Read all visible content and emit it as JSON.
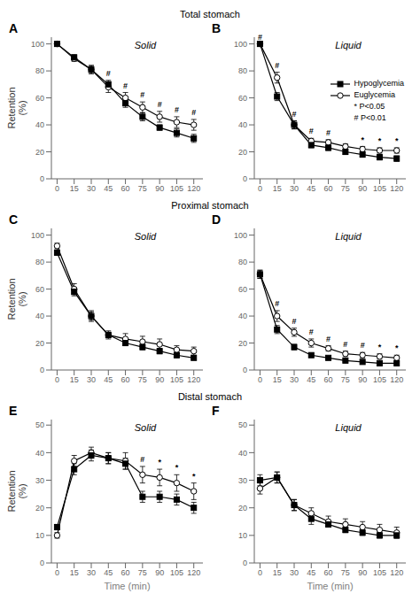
{
  "row_titles": [
    "Total stomach",
    "Proximal stomach",
    "Distal stomach"
  ],
  "chart_data": [
    {
      "type": "line",
      "title": "A",
      "subtitle": "Solid",
      "x": [
        0,
        15,
        30,
        45,
        60,
        75,
        90,
        105,
        120
      ],
      "xlim": [
        -5,
        128
      ],
      "xticks": [
        0,
        15,
        30,
        45,
        60,
        75,
        90,
        105,
        120
      ],
      "ylim": [
        0,
        105
      ],
      "yticks": [
        0,
        20,
        40,
        60,
        80,
        100
      ],
      "ylabel": "Retention\n(%)",
      "grid": false,
      "series": [
        {
          "name": "Hypoglycemia",
          "color": "#000000",
          "marker": "square",
          "values": [
            100,
            90,
            81,
            70,
            56,
            46,
            38,
            34,
            30
          ],
          "errors": [
            0,
            2,
            3,
            3,
            3,
            3,
            2,
            3,
            3
          ]
        },
        {
          "name": "Euglycemia",
          "color": "#000000",
          "marker": "open_circle",
          "values": [
            100,
            89,
            81,
            68,
            60,
            53,
            46,
            42,
            40
          ],
          "errors": [
            0,
            2,
            3,
            4,
            4,
            4,
            4,
            4,
            4
          ]
        }
      ],
      "significance": [
        null,
        null,
        null,
        "#",
        "#",
        "#",
        "#",
        "#",
        "#"
      ]
    },
    {
      "type": "line",
      "title": "B",
      "subtitle": "Liquid",
      "x": [
        0,
        15,
        30,
        45,
        60,
        75,
        90,
        105,
        120
      ],
      "xlim": [
        -5,
        128
      ],
      "xticks": [
        0,
        15,
        30,
        45,
        60,
        75,
        90,
        105,
        120
      ],
      "ylim": [
        0,
        105
      ],
      "yticks": [
        0,
        20,
        40,
        60,
        80,
        100
      ],
      "grid": false,
      "legend": "right",
      "legend_notes": [
        "* P<0.05",
        "# P<0.01"
      ],
      "series": [
        {
          "name": "Hypoglycemia",
          "color": "#000000",
          "marker": "square",
          "values": [
            100,
            61,
            40,
            25,
            23,
            20,
            18,
            16,
            15
          ],
          "errors": [
            0,
            3,
            3,
            2,
            2,
            2,
            2,
            2,
            2
          ]
        },
        {
          "name": "Euglycemia",
          "color": "#000000",
          "marker": "open_circle",
          "values": [
            100,
            75,
            40,
            28,
            27,
            24,
            22,
            21,
            21
          ],
          "errors": [
            0,
            4,
            3,
            2,
            2,
            2,
            2,
            2,
            2
          ]
        }
      ],
      "significance": [
        "#",
        "#",
        "#",
        "#",
        "#",
        null,
        "*",
        "*",
        "*"
      ]
    },
    {
      "type": "line",
      "title": "C",
      "subtitle": "Solid",
      "x": [
        0,
        15,
        30,
        45,
        60,
        75,
        90,
        105,
        120
      ],
      "xlim": [
        -5,
        128
      ],
      "xticks": [
        0,
        15,
        30,
        45,
        60,
        75,
        90,
        105,
        120
      ],
      "ylim": [
        0,
        105
      ],
      "yticks": [
        0,
        20,
        40,
        60,
        80,
        100
      ],
      "ylabel": "Retention\n(%)",
      "grid": false,
      "series": [
        {
          "name": "Hypoglycemia",
          "color": "#000000",
          "marker": "square",
          "values": [
            87,
            58,
            40,
            26,
            20,
            17,
            14,
            11,
            9
          ],
          "errors": [
            2,
            3,
            3,
            2,
            2,
            2,
            2,
            2,
            1
          ]
        },
        {
          "name": "Euglycemia",
          "color": "#000000",
          "marker": "open_circle",
          "values": [
            92,
            60,
            40,
            26,
            23,
            21,
            19,
            15,
            14
          ],
          "errors": [
            2,
            4,
            4,
            3,
            4,
            4,
            4,
            3,
            3
          ]
        }
      ],
      "significance": [
        null,
        null,
        null,
        null,
        null,
        null,
        null,
        null,
        null
      ]
    },
    {
      "type": "line",
      "title": "D",
      "subtitle": "Liquid",
      "x": [
        0,
        15,
        30,
        45,
        60,
        75,
        90,
        105,
        120
      ],
      "xlim": [
        -5,
        128
      ],
      "xticks": [
        0,
        15,
        30,
        45,
        60,
        75,
        90,
        105,
        120
      ],
      "ylim": [
        0,
        105
      ],
      "yticks": [
        0,
        20,
        40,
        60,
        80,
        100
      ],
      "grid": false,
      "series": [
        {
          "name": "Hypoglycemia",
          "color": "#000000",
          "marker": "square",
          "values": [
            71,
            30,
            17,
            11,
            9,
            7,
            6,
            5,
            5
          ],
          "errors": [
            3,
            3,
            2,
            1,
            1,
            1,
            1,
            1,
            1
          ]
        },
        {
          "name": "Euglycemia",
          "color": "#000000",
          "marker": "open_circle",
          "values": [
            71,
            40,
            28,
            20,
            16,
            12,
            11,
            10,
            9
          ],
          "errors": [
            3,
            4,
            3,
            3,
            2,
            2,
            2,
            2,
            2
          ]
        }
      ],
      "significance": [
        null,
        "#",
        "#",
        "#",
        "#",
        "#",
        "#",
        "*",
        "*"
      ]
    },
    {
      "type": "line",
      "title": "E",
      "subtitle": "Solid",
      "x": [
        0,
        15,
        30,
        45,
        60,
        75,
        90,
        105,
        120
      ],
      "xlim": [
        -5,
        128
      ],
      "xticks": [
        0,
        15,
        30,
        45,
        60,
        75,
        90,
        105,
        120
      ],
      "ylim": [
        0,
        52
      ],
      "yticks": [
        0,
        10,
        20,
        30,
        40,
        50
      ],
      "xlabel": "Time (min)",
      "ylabel": "Retention\n(%)",
      "grid": false,
      "series": [
        {
          "name": "Hypoglycemia",
          "color": "#000000",
          "marker": "square",
          "values": [
            13,
            34,
            39,
            38,
            36,
            24,
            24,
            23,
            20
          ],
          "errors": [
            1,
            2,
            2,
            2,
            2,
            2,
            2,
            2,
            2
          ]
        },
        {
          "name": "Euglycemia",
          "color": "#000000",
          "marker": "open_circle",
          "values": [
            10,
            37,
            40,
            38,
            37,
            32,
            31,
            29,
            26
          ],
          "errors": [
            1,
            2,
            2,
            2,
            3,
            3,
            3,
            3,
            3
          ]
        }
      ],
      "significance": [
        null,
        null,
        null,
        null,
        null,
        "#",
        "*",
        "*",
        "*"
      ]
    },
    {
      "type": "line",
      "title": "F",
      "subtitle": "Liquid",
      "x": [
        0,
        15,
        30,
        45,
        60,
        75,
        90,
        105,
        120
      ],
      "xlim": [
        -5,
        128
      ],
      "xticks": [
        0,
        15,
        30,
        45,
        60,
        75,
        90,
        105,
        120
      ],
      "ylim": [
        0,
        52
      ],
      "yticks": [
        0,
        10,
        20,
        30,
        40,
        50
      ],
      "xlabel": "Time (min)",
      "grid": false,
      "series": [
        {
          "name": "Hypoglycemia",
          "color": "#000000",
          "marker": "square",
          "values": [
            30,
            31,
            21,
            16,
            14,
            12,
            11,
            10,
            10
          ],
          "errors": [
            2,
            2,
            2,
            2,
            1,
            1,
            1,
            1,
            1
          ]
        },
        {
          "name": "Euglycemia",
          "color": "#000000",
          "marker": "open_circle",
          "values": [
            27,
            31,
            21,
            18,
            15,
            14,
            13,
            12,
            11
          ],
          "errors": [
            2,
            2,
            2,
            2,
            2,
            2,
            2,
            2,
            2
          ]
        }
      ],
      "significance": [
        null,
        null,
        null,
        null,
        null,
        null,
        null,
        null,
        null
      ]
    }
  ]
}
